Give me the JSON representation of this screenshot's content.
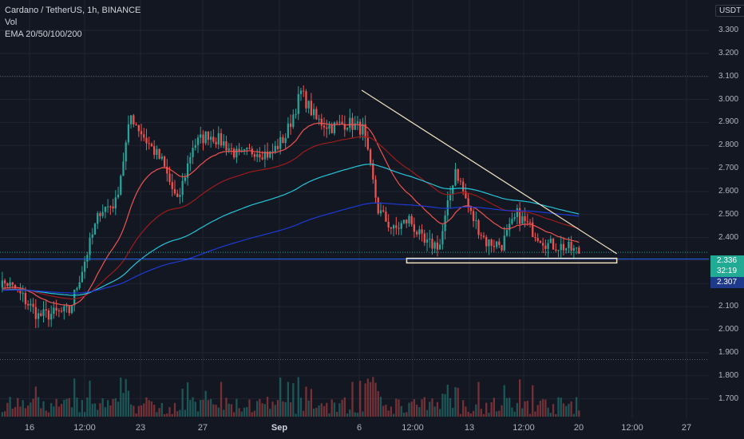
{
  "header": {
    "title": "Cardano / TetherUS, 1h, BINANCE",
    "indicator_vol": "Vol",
    "indicator_ema": "EMA 20/50/100/200"
  },
  "price_axis": {
    "currency": "USDT",
    "ticks": [
      "3.300",
      "3.200",
      "3.100",
      "3.000",
      "2.900",
      "2.800",
      "2.700",
      "2.600",
      "2.500",
      "2.400",
      "2.300",
      "2.200",
      "2.100",
      "2.000",
      "1.900",
      "1.800",
      "1.700"
    ],
    "current_price": "2.336",
    "countdown": "32:19",
    "line_price": "2.307"
  },
  "time_axis": {
    "ticks": [
      "16",
      "12:00",
      "23",
      "27",
      "Sep",
      "6",
      "12:00",
      "13",
      "12:00",
      "20",
      "12:00",
      "27"
    ]
  },
  "colors": {
    "background": "#131722",
    "up": "#26a69a",
    "down": "#ef5350",
    "ema20": "#ef5350",
    "ema50": "#9e1b1b",
    "ema100": "#26c6da",
    "ema200": "#1e3ad6",
    "trendline": "#f0e0c0",
    "support_box": "#f0e0c0",
    "horizontal_line": "#2962ff"
  },
  "chart_data": {
    "type": "candlestick",
    "symbol": "ADA/USDT",
    "interval": "1h",
    "ylim": [
      1.66,
      3.38
    ],
    "x_range_days": [
      "Aug 13",
      "Sep 29"
    ],
    "key_levels": {
      "horizontal_dotted": [
        3.1,
        1.87
      ],
      "horizontal_line": 2.307,
      "current_price": 2.336
    },
    "descending_trendline": {
      "from": [
        "Sep 5",
        3.04
      ],
      "to": [
        "Sep 21",
        2.33
      ]
    },
    "support_box": {
      "from": [
        "Sep 9",
        2.31
      ],
      "to": [
        "Sep 21",
        2.29
      ]
    },
    "price_path": [
      [
        "Aug 13",
        2.2
      ],
      [
        "Aug 14",
        2.2
      ],
      [
        "Aug 15",
        2.14
      ],
      [
        "Aug 16",
        2.06
      ],
      [
        "Aug 17",
        2.07
      ],
      [
        "Aug 18",
        2.08
      ],
      [
        "Aug 19",
        2.3
      ],
      [
        "Aug 20",
        2.52
      ],
      [
        "Aug 21",
        2.55
      ],
      [
        "Aug 22",
        2.93
      ],
      [
        "Aug 23",
        2.82
      ],
      [
        "Aug 24",
        2.73
      ],
      [
        "Aug 25",
        2.55
      ],
      [
        "Aug 26",
        2.8
      ],
      [
        "Aug 27",
        2.85
      ],
      [
        "Aug 28",
        2.81
      ],
      [
        "Aug 29",
        2.75
      ],
      [
        "Aug 30",
        2.78
      ],
      [
        "Aug 31",
        2.76
      ],
      [
        "Sep 1",
        2.84
      ],
      [
        "Sep 2",
        3.03
      ],
      [
        "Sep 3",
        2.91
      ],
      [
        "Sep 4",
        2.88
      ],
      [
        "Sep 5",
        2.9
      ],
      [
        "Sep 6",
        2.87
      ],
      [
        "Sep 7",
        2.52
      ],
      [
        "Sep 8",
        2.43
      ],
      [
        "Sep 9",
        2.48
      ],
      [
        "Sep 10",
        2.37
      ],
      [
        "Sep 11",
        2.37
      ],
      [
        "Sep 12",
        2.7
      ],
      [
        "Sep 13",
        2.5
      ],
      [
        "Sep 14",
        2.38
      ],
      [
        "Sep 15",
        2.37
      ],
      [
        "Sep 16",
        2.5
      ],
      [
        "Sep 17",
        2.43
      ],
      [
        "Sep 18",
        2.37
      ],
      [
        "Sep 19",
        2.36
      ],
      [
        "Sep 20",
        2.336
      ]
    ]
  }
}
